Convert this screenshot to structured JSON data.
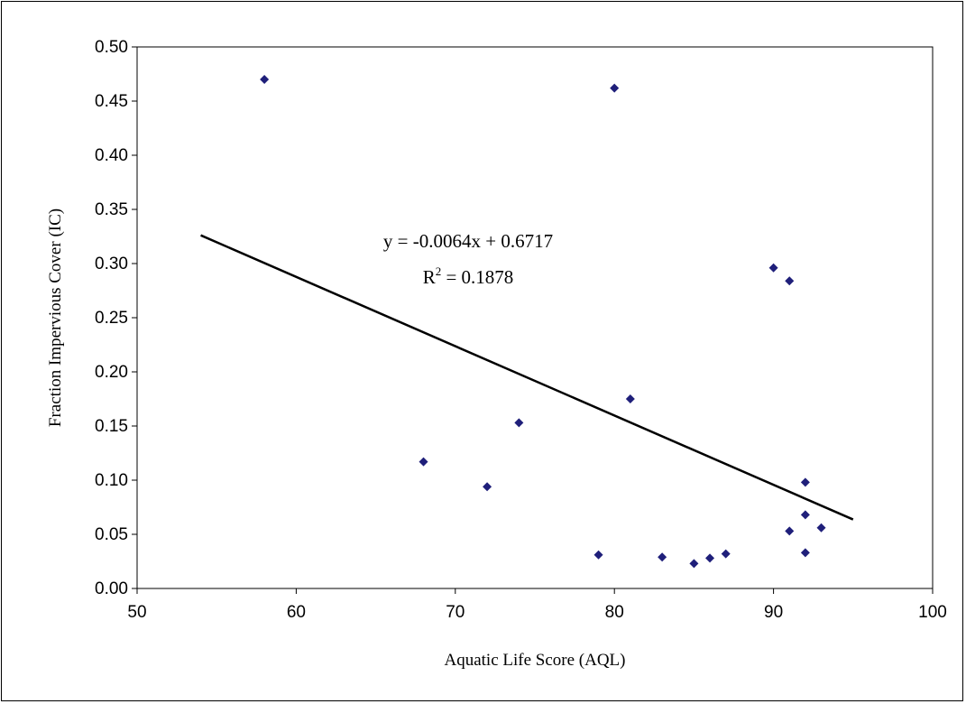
{
  "chart_data": {
    "type": "scatter",
    "xlabel": "Aquatic Life Score (AQL)",
    "ylabel": "Fraction Impervious Cover (IC)",
    "xlim": [
      50,
      100
    ],
    "ylim": [
      0,
      0.5
    ],
    "x_ticks": [
      "50",
      "60",
      "70",
      "80",
      "90",
      "100"
    ],
    "y_ticks": [
      "0.00",
      "0.05",
      "0.10",
      "0.15",
      "0.20",
      "0.25",
      "0.30",
      "0.35",
      "0.40",
      "0.45",
      "0.50"
    ],
    "grid": false,
    "legend": "none",
    "marker_color": "#1F1F7A",
    "points": [
      {
        "x": 58,
        "y": 0.47
      },
      {
        "x": 68,
        "y": 0.117
      },
      {
        "x": 72,
        "y": 0.094
      },
      {
        "x": 74,
        "y": 0.153
      },
      {
        "x": 79,
        "y": 0.031
      },
      {
        "x": 80,
        "y": 0.462
      },
      {
        "x": 81,
        "y": 0.175
      },
      {
        "x": 83,
        "y": 0.029
      },
      {
        "x": 85,
        "y": 0.023
      },
      {
        "x": 86,
        "y": 0.028
      },
      {
        "x": 87,
        "y": 0.032
      },
      {
        "x": 90,
        "y": 0.296
      },
      {
        "x": 91,
        "y": 0.284
      },
      {
        "x": 91,
        "y": 0.053
      },
      {
        "x": 92,
        "y": 0.098
      },
      {
        "x": 92,
        "y": 0.068
      },
      {
        "x": 92,
        "y": 0.033
      },
      {
        "x": 93,
        "y": 0.056
      }
    ],
    "trendline": {
      "slope": -0.0064,
      "intercept": 0.6717,
      "x_range": [
        54,
        95
      ],
      "color": "#000000"
    },
    "annotations": {
      "equation": "y = -0.0064x + 0.6717",
      "r_squared_prefix": "R",
      "r_squared_superscript": "2",
      "r_squared_value": " = 0.1878"
    }
  }
}
